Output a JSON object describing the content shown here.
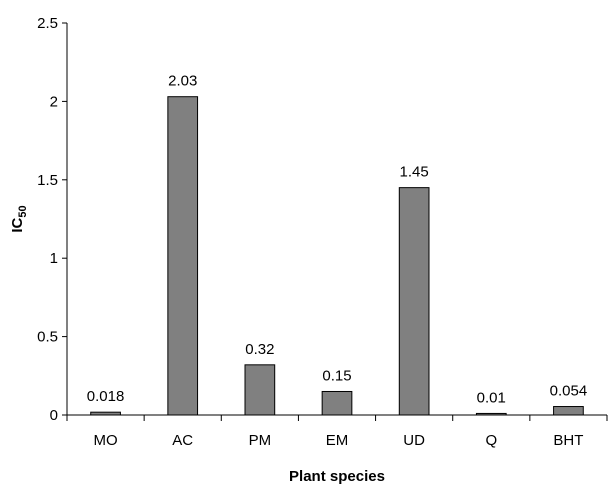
{
  "chart_data": {
    "type": "bar",
    "categories": [
      "MO",
      "AC",
      "PM",
      "EM",
      "UD",
      "Q",
      "BHT"
    ],
    "values": [
      0.018,
      2.03,
      0.32,
      0.15,
      1.45,
      0.01,
      0.054
    ],
    "data_labels": [
      "0.018",
      "2.03",
      "0.32",
      "0.15",
      "1.45",
      "0.01",
      "0.054"
    ],
    "xlabel": "Plant species",
    "ylabel_main": "IC",
    "ylabel_sub": "50",
    "ylim": [
      0,
      2.5
    ],
    "yticks": [
      0,
      0.5,
      1,
      1.5,
      2,
      2.5
    ],
    "ytick_labels": [
      "0",
      "0.5",
      "1",
      "1.5",
      "2",
      "2.5"
    ],
    "grid": false,
    "bar_color": "#808080",
    "bar_edge_color": "#000000"
  }
}
